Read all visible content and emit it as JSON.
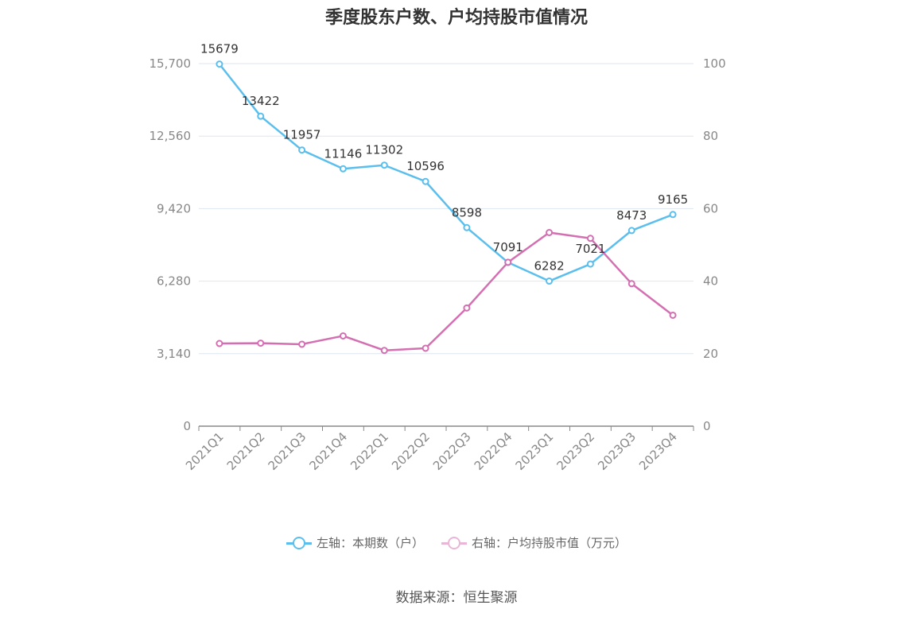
{
  "title": "季度股东户数、户均持股市值情况",
  "source": "数据来源：恒生聚源",
  "chart_data": {
    "type": "line",
    "categories": [
      "2021Q1",
      "2021Q2",
      "2021Q3",
      "2021Q4",
      "2022Q1",
      "2022Q2",
      "2022Q3",
      "2022Q4",
      "2023Q1",
      "2023Q2",
      "2023Q3",
      "2023Q4"
    ],
    "left_axis": {
      "ylim": [
        0,
        15700
      ],
      "ticks": [
        "0",
        "3,140",
        "6,280",
        "9,420",
        "12,560",
        "15,700"
      ],
      "tick_values": [
        0,
        3140,
        6280,
        9420,
        12560,
        15700
      ]
    },
    "right_axis": {
      "ylim": [
        0,
        100
      ],
      "ticks": [
        "0",
        "20",
        "40",
        "60",
        "80",
        "100"
      ],
      "tick_values": [
        0,
        20,
        40,
        60,
        80,
        100
      ]
    },
    "series": [
      {
        "name": "左轴：本期数（户）",
        "axis": "left",
        "color": "#5bbfee",
        "values": [
          15679,
          13422,
          11957,
          11146,
          11302,
          10596,
          8598,
          7091,
          6282,
          7021,
          8473,
          9165
        ],
        "labels": [
          "15679",
          "13422",
          "11957",
          "11146",
          "11302",
          "10596",
          "8598",
          "7091",
          "6282",
          "7021",
          "8473",
          "9165"
        ]
      },
      {
        "name": "右轴：户均持股市值（万元）",
        "axis": "right",
        "color": "#d46fb2",
        "values": [
          22.8,
          22.9,
          22.6,
          24.9,
          20.9,
          21.5,
          32.6,
          45.2,
          53.4,
          51.8,
          39.3,
          30.6
        ]
      }
    ],
    "grid": true,
    "legend_position": "bottom"
  }
}
